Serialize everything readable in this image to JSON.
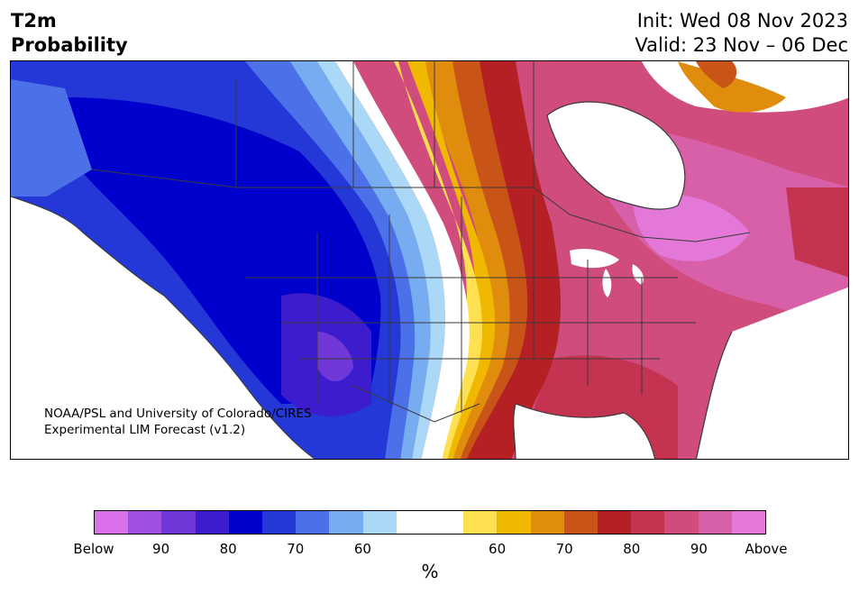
{
  "header": {
    "title_line1": "T2m",
    "title_line2": "Probability",
    "init": "Init: Wed 08 Nov 2023",
    "valid": "Valid: 23 Nov – 06 Dec"
  },
  "credit": {
    "line1": "NOAA/PSL and University of Colorado/CIRES",
    "line2": "Experimental LIM Forecast (v1.2)"
  },
  "colorbar": {
    "unit": "%",
    "colors": [
      "#d870e8",
      "#a050e0",
      "#7038d8",
      "#3c1ccc",
      "#0000cc",
      "#2438d8",
      "#4c70e8",
      "#78acf0",
      "#acd8f8",
      "#ffffff",
      "#ffffff",
      "#ffe050",
      "#f0b800",
      "#e08c0c",
      "#c85418",
      "#b42024",
      "#c43450",
      "#d04c7c",
      "#d860a8",
      "#e478d8"
    ],
    "ticks": [
      {
        "label": "Below"
      },
      {
        "label": "90"
      },
      {
        "label": "80"
      },
      {
        "label": "70"
      },
      {
        "label": "60"
      },
      {
        "label": "60"
      },
      {
        "label": "70"
      },
      {
        "label": "80"
      },
      {
        "label": "90"
      },
      {
        "label": "Above"
      }
    ]
  }
}
